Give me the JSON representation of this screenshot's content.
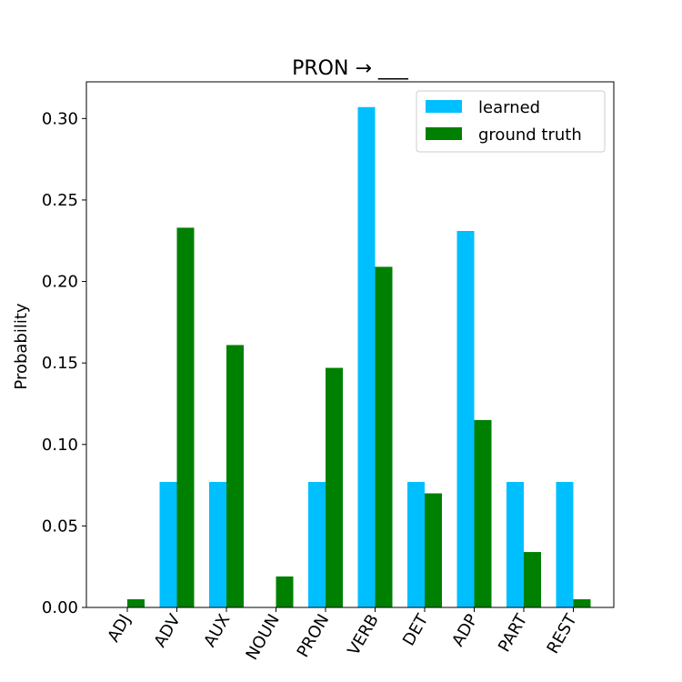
{
  "chart_data": {
    "type": "bar",
    "title": "PRON → ___",
    "xlabel": "",
    "ylabel": "Probability",
    "ylim": [
      0,
      0.3225
    ],
    "yticks": [
      "0.00",
      "0.05",
      "0.10",
      "0.15",
      "0.20",
      "0.25",
      "0.30"
    ],
    "categories": [
      "ADJ",
      "ADV",
      "AUX",
      "NOUN",
      "PRON",
      "VERB",
      "DET",
      "ADP",
      "PART",
      "REST"
    ],
    "series": [
      {
        "name": "learned",
        "color": "#00bfff",
        "values": [
          0.0,
          0.077,
          0.077,
          0.0,
          0.077,
          0.307,
          0.077,
          0.231,
          0.077,
          0.077
        ]
      },
      {
        "name": "ground truth",
        "color": "#008000",
        "values": [
          0.005,
          0.233,
          0.161,
          0.019,
          0.147,
          0.209,
          0.07,
          0.115,
          0.034,
          0.005
        ]
      }
    ],
    "legend_position": "top-right",
    "grid": false
  }
}
